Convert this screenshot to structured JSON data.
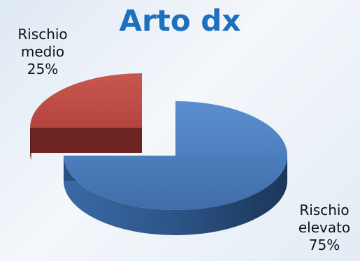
{
  "chart_data": {
    "type": "pie",
    "title": "Arto dx",
    "style": "3d-exploded",
    "slices": [
      {
        "label_line1": "Rischio",
        "label_line2": "elevato",
        "percent_text": "75%",
        "value": 75,
        "color": "#4f7fbe",
        "side_color": "#2f5586"
      },
      {
        "label_line1": "Rischio",
        "label_line2": "medio",
        "percent_text": "25%",
        "value": 25,
        "color": "#c0504d",
        "side_color": "#6e2422"
      }
    ]
  }
}
